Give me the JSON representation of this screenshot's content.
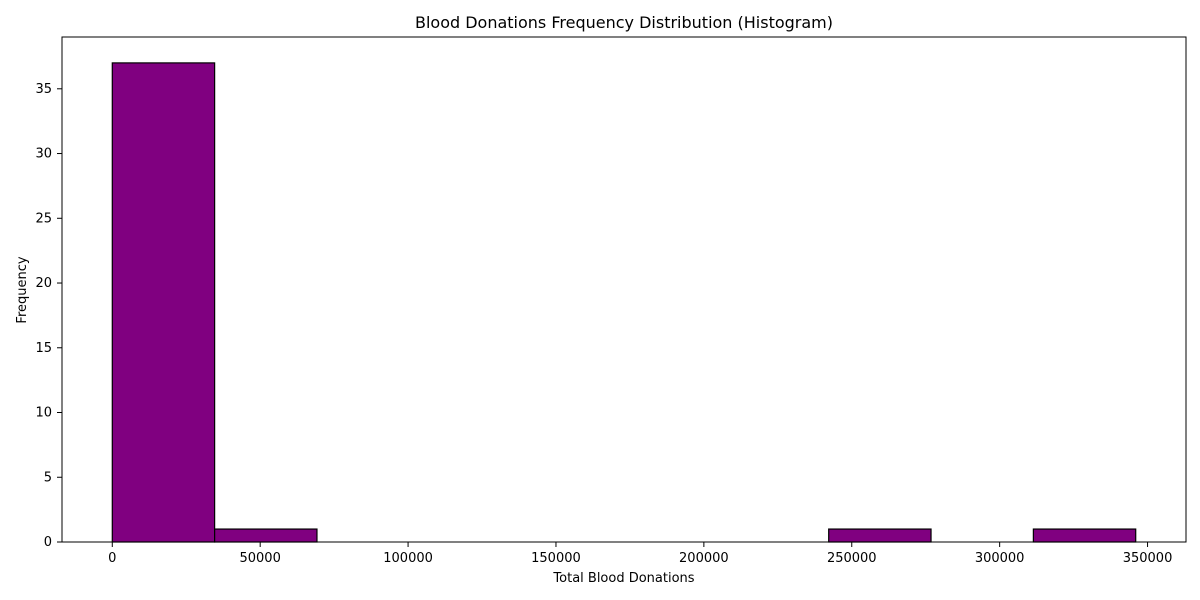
{
  "chart_data": {
    "type": "bar",
    "title": "Blood Donations Frequency Distribution (Histogram)",
    "xlabel": "Total Blood Donations",
    "ylabel": "Frequency",
    "xlim": [
      -17000,
      363000
    ],
    "ylim": [
      0,
      39
    ],
    "x_ticks": [
      0,
      50000,
      100000,
      150000,
      200000,
      250000,
      300000,
      350000
    ],
    "y_ticks": [
      0,
      5,
      10,
      15,
      20,
      25,
      30,
      35
    ],
    "bins": [
      {
        "start": 0,
        "end": 34600,
        "value": 37
      },
      {
        "start": 34600,
        "end": 69200,
        "value": 1
      },
      {
        "start": 69200,
        "end": 103800,
        "value": 0
      },
      {
        "start": 103800,
        "end": 138400,
        "value": 0
      },
      {
        "start": 138400,
        "end": 173000,
        "value": 0
      },
      {
        "start": 173000,
        "end": 207600,
        "value": 0
      },
      {
        "start": 207600,
        "end": 242200,
        "value": 0
      },
      {
        "start": 242200,
        "end": 276800,
        "value": 1
      },
      {
        "start": 276800,
        "end": 311400,
        "value": 0
      },
      {
        "start": 311400,
        "end": 346000,
        "value": 1
      }
    ],
    "colors": {
      "bar_fill": "#800080",
      "bar_edge": "#000000"
    }
  }
}
